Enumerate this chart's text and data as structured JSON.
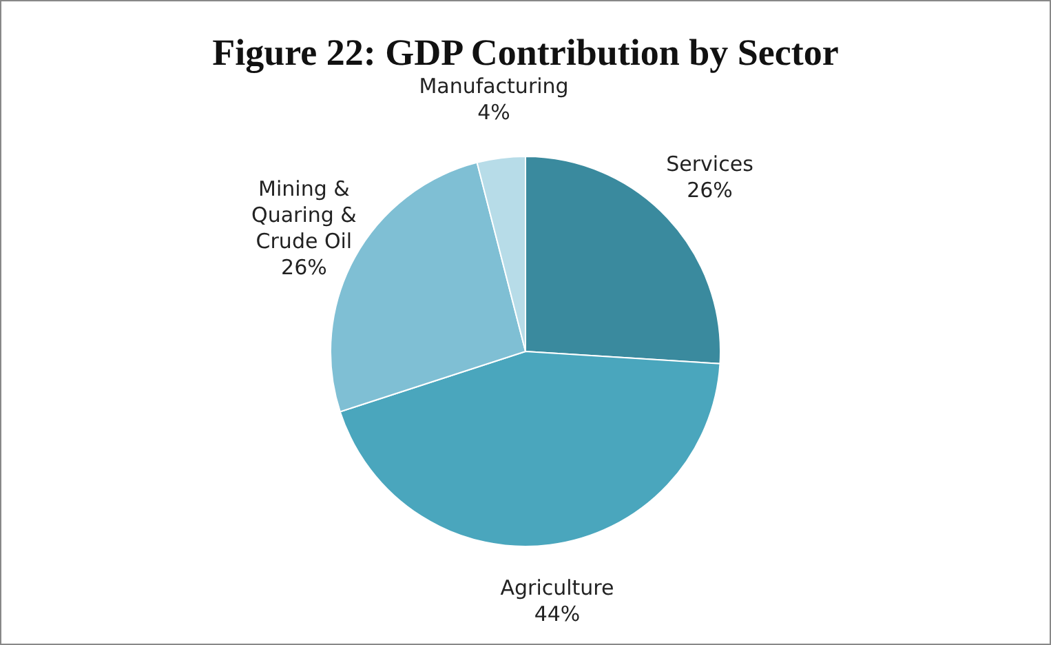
{
  "chart_data": {
    "type": "pie",
    "title": "Figure 22: GDP Contribution by Sector",
    "categories": [
      "Services",
      "Agriculture",
      "Mining & Quaring & Crude Oil",
      "Manufacturing"
    ],
    "values": [
      26,
      44,
      26,
      4
    ],
    "value_labels": [
      "26%",
      "44%",
      "26%",
      "4%"
    ],
    "colors": [
      "#3a8a9e",
      "#4aa6bd",
      "#7fbfd4",
      "#b7dce8"
    ],
    "legend": false
  }
}
